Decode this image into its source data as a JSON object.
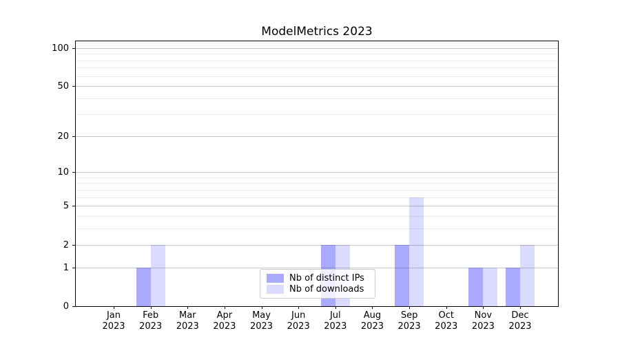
{
  "chart_data": {
    "type": "bar",
    "title": "ModelMetrics 2023",
    "categories": [
      "Jan 2023",
      "Feb 2023",
      "Mar 2023",
      "Apr 2023",
      "May 2023",
      "Jun 2023",
      "Jul 2023",
      "Aug 2023",
      "Sep 2023",
      "Oct 2023",
      "Nov 2023",
      "Dec 2023"
    ],
    "series": [
      {
        "name": "Nb of distinct IPs",
        "color": "#0000FF55",
        "values": [
          0,
          1,
          0,
          0,
          0,
          0,
          2,
          0,
          2,
          0,
          1,
          1
        ]
      },
      {
        "name": "Nb of downloads",
        "color": "#0000FF24",
        "values": [
          0,
          2,
          0,
          0,
          0,
          0,
          2,
          0,
          6,
          0,
          1,
          2
        ]
      }
    ],
    "xlabel": "",
    "ylabel": "",
    "yscale": "log1p",
    "ylim": [
      0,
      113
    ],
    "yticks": [
      0,
      1,
      2,
      5,
      10,
      20,
      50,
      100
    ],
    "yticks_minor": [
      3,
      4,
      6,
      7,
      8,
      9,
      30,
      40,
      60,
      70,
      80,
      90,
      110
    ],
    "grid": true,
    "legend_position": "lower center"
  },
  "colors": {
    "background": "#ffffff",
    "bar_distinct_ips": "#0000FF55",
    "bar_downloads": "#0000FF24",
    "grid_major": "#c8c8c8",
    "grid_minor": "#ececec",
    "spine": "#000000",
    "legend_border": "#cccccc",
    "text": "#000000"
  }
}
